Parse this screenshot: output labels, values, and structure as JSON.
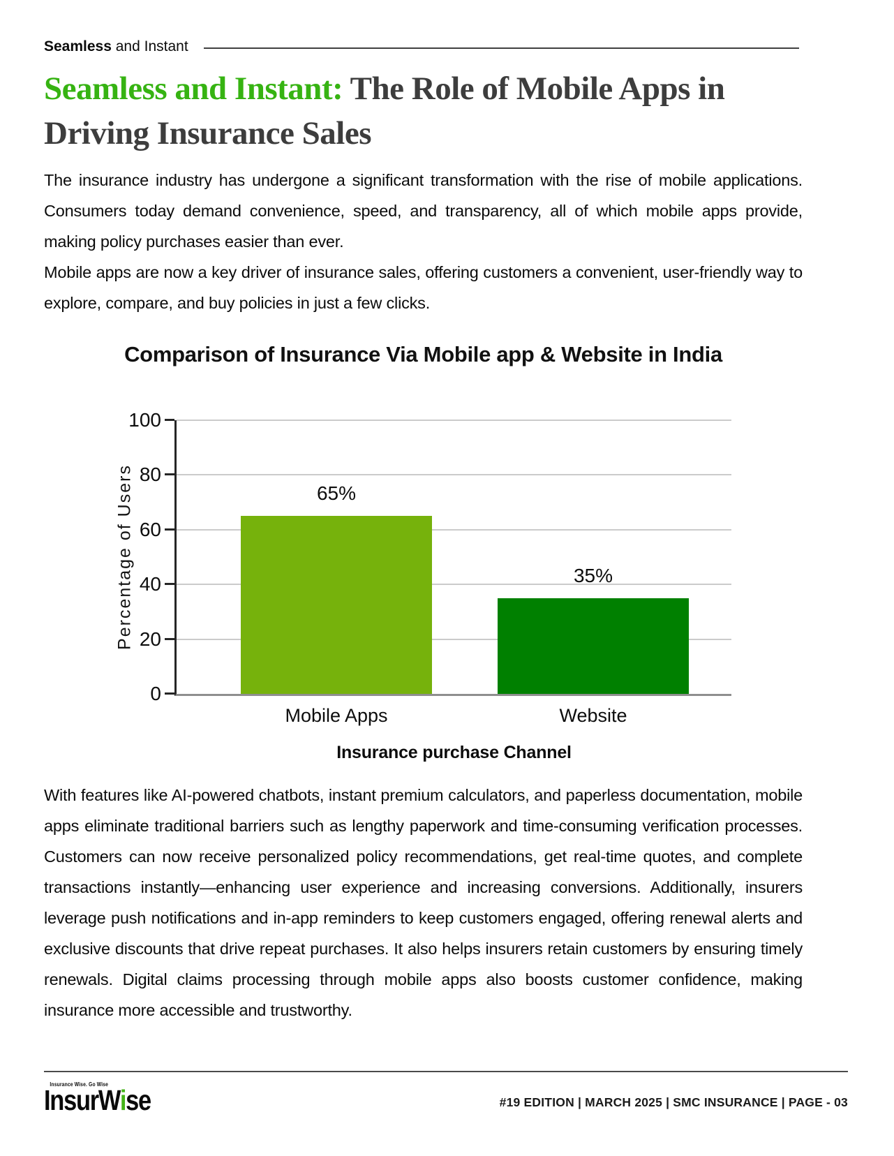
{
  "page": {
    "masthead": {
      "bold": "Seamless",
      "rest": " and Instant"
    },
    "title": {
      "highlight": "Seamless and Instant:",
      "rest": " The Role of Mobile Apps in Driving Insurance Sales"
    },
    "paragraphs": {
      "p1": "The insurance industry has undergone a significant transformation with the rise of mobile applications. Consumers today demand convenience, speed, and transparency, all of which mobile apps provide, making policy purchases easier than ever.",
      "p2": "Mobile apps are now a key driver of insurance sales, offering customers a convenient, user-friendly way to explore, compare, and buy policies in just a few clicks.",
      "p3": "With features like AI-powered chatbots, instant premium calculators, and paperless documentation, mobile apps eliminate traditional barriers such as lengthy paperwork and time-consuming verification processes. Customers can now receive personalized policy recommendations, get real-time quotes, and complete transactions instantly—enhancing user experience and increasing conversions. Additionally, insurers leverage push notifications and in-app reminders to keep customers engaged, offering renewal alerts and exclusive discounts that drive repeat purchases. It also helps insurers retain customers by ensuring timely renewals. Digital claims processing through mobile apps also boosts customer confidence, making insurance more accessible and trustworthy."
    },
    "footer": {
      "logo": {
        "tagline": "Insurance Wise. Go Wise",
        "word_start": "InsurW",
        "word_green": "i",
        "word_end": "se"
      },
      "meta": "#19 EDITION | MARCH 2025 | SMC INSURANCE | PAGE - 03"
    },
    "colors": {
      "title_green": "#36b312",
      "title_dark": "#3d3d3d",
      "logo_green": "#44b418",
      "bar_light_green": "#76b20c",
      "bar_dark_green": "#008000"
    }
  },
  "chart_data": {
    "type": "bar",
    "title": "Comparison of Insurance Via Mobile app & Website in India",
    "categories": [
      "Mobile Apps",
      "Website"
    ],
    "values": [
      65,
      35
    ],
    "value_labels": [
      "65%",
      "35%"
    ],
    "bar_colors": [
      "#76b20c",
      "#008000"
    ],
    "xlabel": "Insurance purchase Channel",
    "ylabel": "Percentage of Users",
    "ylim": [
      0,
      100
    ],
    "yticks": [
      0,
      20,
      40,
      60,
      80,
      100
    ],
    "grid": true,
    "legend": false,
    "value_label_position": "above"
  }
}
